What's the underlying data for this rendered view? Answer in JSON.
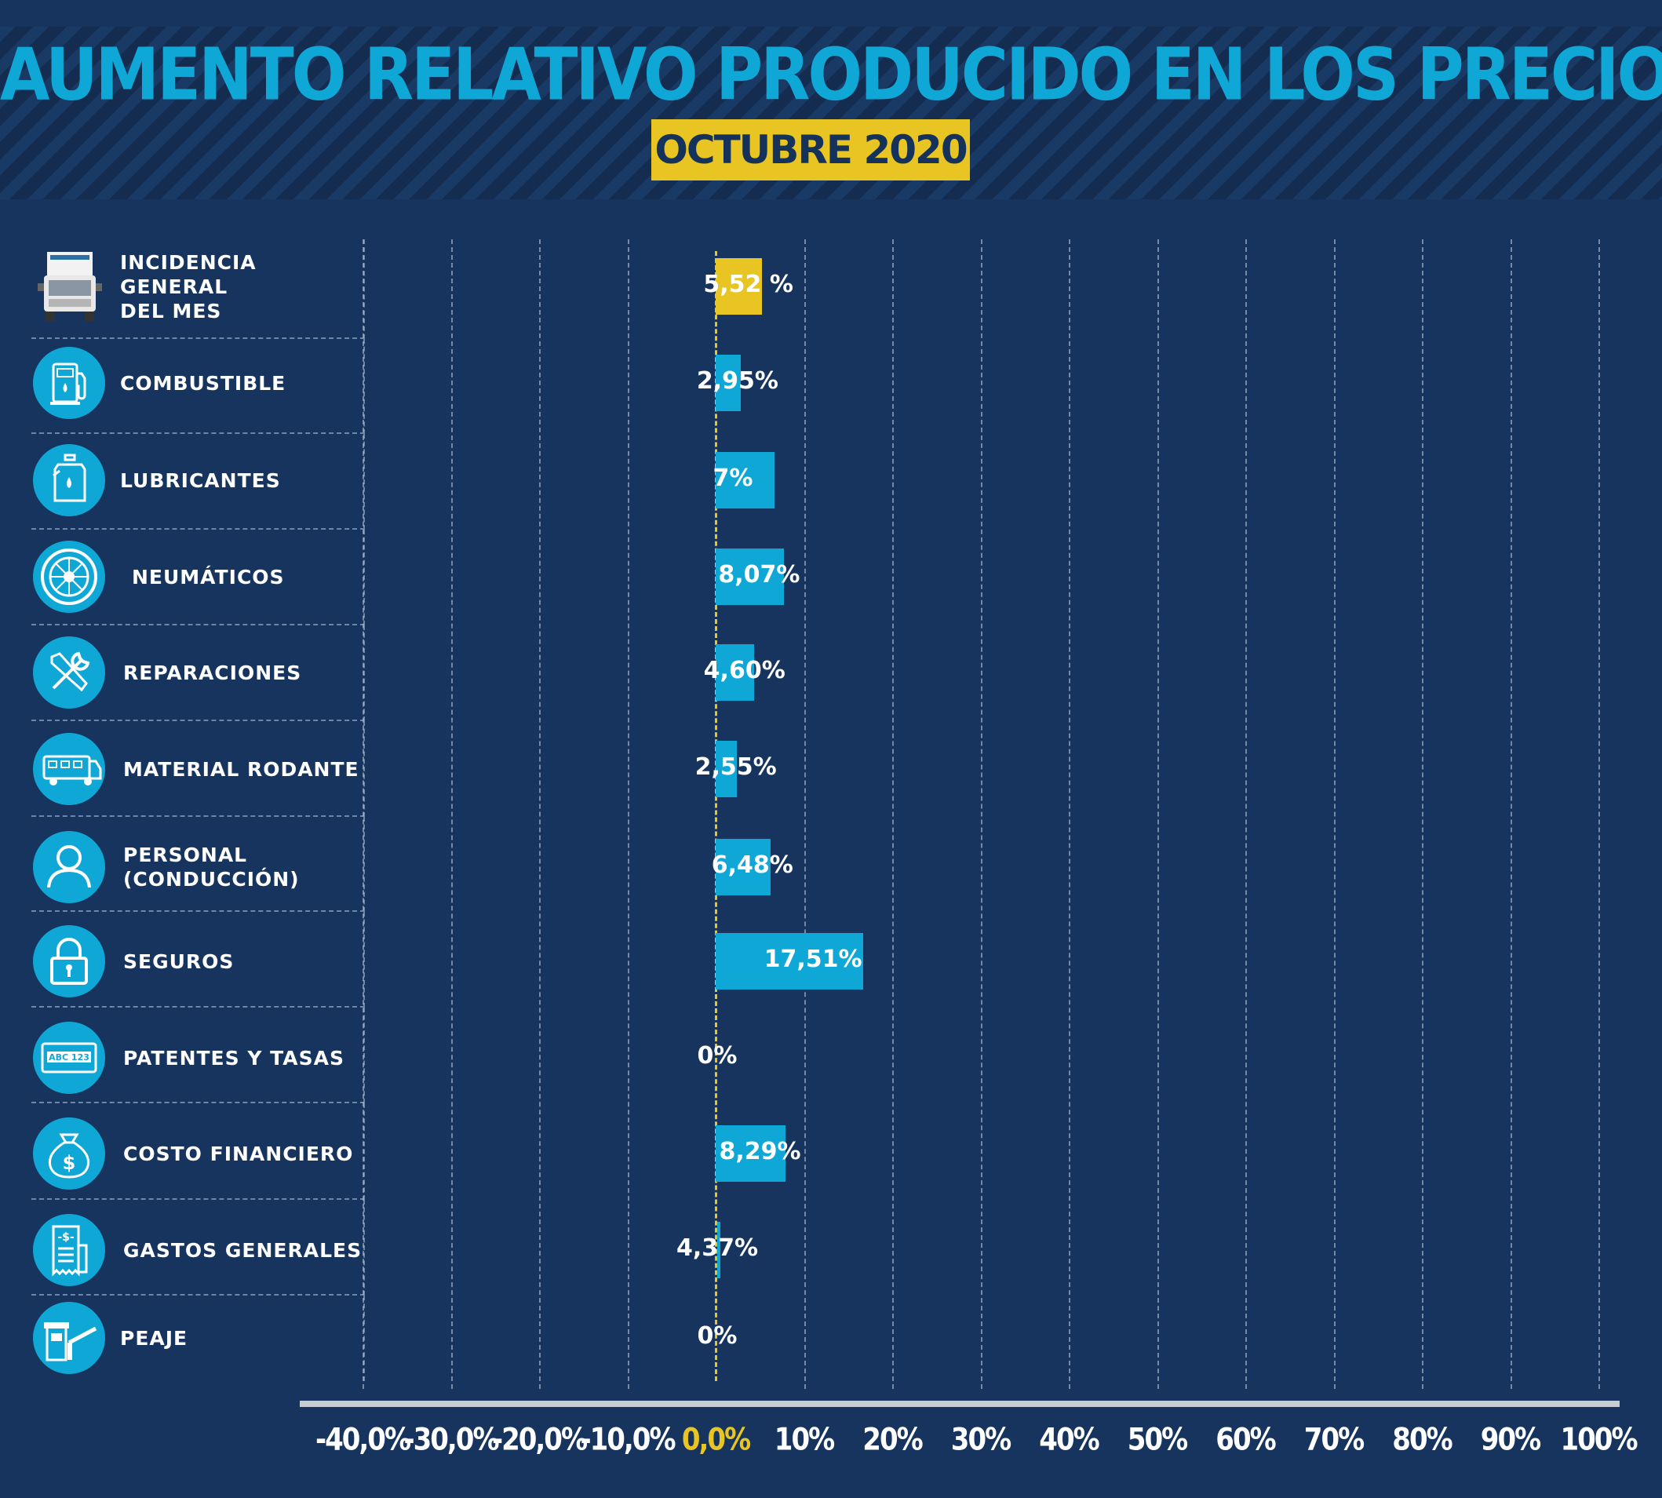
{
  "header": {
    "title": "AUMENTO RELATIVO PRODUCIDO EN LOS PRECIOS",
    "subtitle": "OCTUBRE 2020"
  },
  "colors": {
    "background": "#16345d",
    "accent_blue": "#0fa8d6",
    "highlight_yellow": "#e8c522"
  },
  "rows": [
    {
      "label": "INCIDENCIA\nGENERAL\nDEL MES",
      "icon": "truck-icon"
    },
    {
      "label": "COMBUSTIBLE",
      "icon": "fuel-pump-icon"
    },
    {
      "label": "LUBRICANTES",
      "icon": "oil-bottle-icon"
    },
    {
      "label": "NEUMÁTICOS",
      "icon": "tire-icon"
    },
    {
      "label": "REPARACIONES",
      "icon": "tools-icon"
    },
    {
      "label": "MATERIAL RODANTE",
      "icon": "truck-side-icon"
    },
    {
      "label": "PERSONAL\n(CONDUCCIÓN)",
      "icon": "person-icon"
    },
    {
      "label": "SEGUROS",
      "icon": "padlock-icon"
    },
    {
      "label": "PATENTES Y TASAS",
      "icon": "license-plate-icon"
    },
    {
      "label": "COSTO FINANCIERO",
      "icon": "money-bag-icon"
    },
    {
      "label": "GASTOS GENERALES",
      "icon": "receipt-icon"
    },
    {
      "label": "PEAJE",
      "icon": "toll-booth-icon"
    }
  ],
  "chart_data": {
    "type": "bar",
    "orientation": "horizontal",
    "title": "AUMENTO RELATIVO PRODUCIDO EN LOS PRECIOS",
    "subtitle": "OCTUBRE 2020",
    "categories": [
      "INCIDENCIA GENERAL DEL MES",
      "COMBUSTIBLE",
      "LUBRICANTES",
      "NEUMÁTICOS",
      "REPARACIONES",
      "MATERIAL RODANTE",
      "PERSONAL (CONDUCCIÓN)",
      "SEGUROS",
      "PATENTES Y TASAS",
      "COSTO FINANCIERO",
      "GASTOS GENERALES",
      "PEAJE"
    ],
    "values": [
      5.52,
      2.95,
      7,
      8.07,
      4.6,
      2.55,
      6.48,
      17.51,
      0,
      8.29,
      4.37,
      0
    ],
    "data_labels": [
      "5,52 %",
      "2,95%",
      "7%",
      "8,07%",
      "4,60%",
      "2,55%",
      "6,48%",
      "17,51%",
      "0%",
      "8,29%",
      "4,37%",
      "0%"
    ],
    "highlight_index": 0,
    "xlim": [
      -40,
      100
    ],
    "tick_values": [
      -40,
      -30,
      -20,
      -10,
      0,
      10,
      20,
      30,
      40,
      50,
      60,
      70,
      80,
      90,
      100
    ],
    "tick_labels": [
      "-40,0%",
      "-30,0%",
      "-20,0%",
      "-10,0%",
      "0,0%",
      "10%",
      "20%",
      "30%",
      "40%",
      "50%",
      "60%",
      "70%",
      "80%",
      "90%",
      "100%"
    ],
    "grid": true
  }
}
